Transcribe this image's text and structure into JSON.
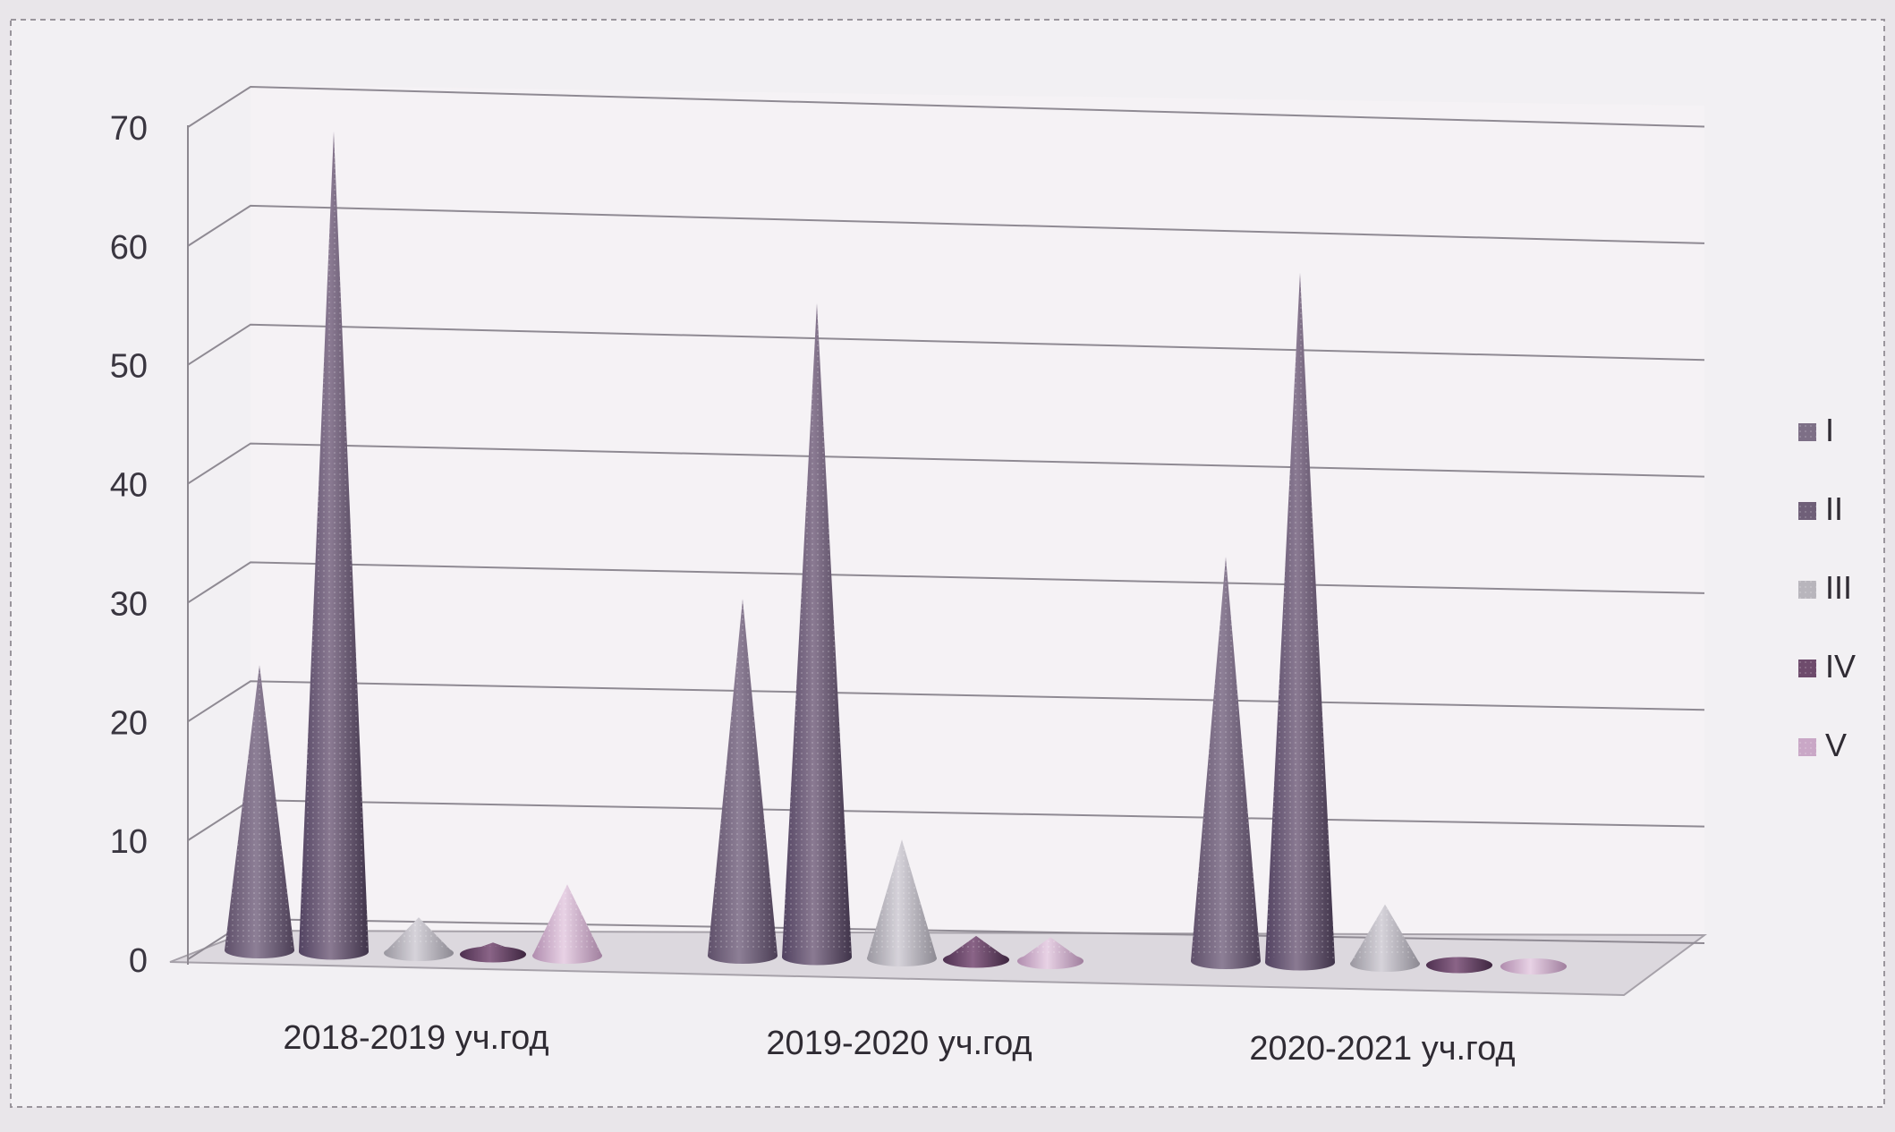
{
  "chart_data": {
    "type": "bar",
    "subtype": "3d-cone",
    "title": "",
    "xlabel": "",
    "ylabel": "",
    "ylim": [
      0,
      70
    ],
    "yticks": [
      "0",
      "10",
      "20",
      "30",
      "40",
      "50",
      "60",
      "70"
    ],
    "grid": true,
    "legend_position": "right",
    "categories": [
      "2018-2019 уч.год",
      "2019-2020 уч.год",
      "2020-2021 уч.год"
    ],
    "series": [
      {
        "name": "I",
        "values": [
          24,
          30,
          34
        ],
        "color": "#7d6f86"
      },
      {
        "name": "II",
        "values": [
          69,
          55,
          58
        ],
        "color": "#6f5f78"
      },
      {
        "name": "III",
        "values": [
          3,
          10,
          5
        ],
        "color": "#b8b5bc"
      },
      {
        "name": "IV",
        "values": [
          1,
          2,
          0.5
        ],
        "color": "#6e4b6c"
      },
      {
        "name": "V",
        "values": [
          6,
          2,
          0.5
        ],
        "color": "#c9a7c6"
      }
    ]
  }
}
